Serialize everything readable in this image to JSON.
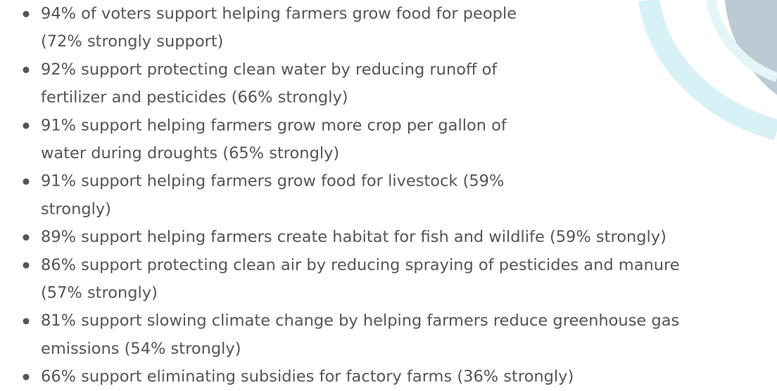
{
  "items": [
    {
      "lines": [
        "94% of voters support helping farmers grow food for people",
        "(72% strongly support)"
      ]
    },
    {
      "lines": [
        "92% support protecting clean water by reducing runoff of",
        "fertilizer and pesticides (66% strongly)"
      ]
    },
    {
      "lines": [
        "91% support helping farmers grow more crop per gallon of",
        "water during droughts (65% strongly)"
      ]
    },
    {
      "lines": [
        "91% support helping farmers grow food for livestock (59%",
        "strongly)"
      ]
    },
    {
      "lines": [
        "89% support helping farmers create habitat for fish and wildlife (59% strongly)"
      ]
    },
    {
      "lines": [
        "86% support protecting clean air by reducing spraying of pesticides and manure",
        "(57% strongly)"
      ]
    },
    {
      "lines": [
        "81% support slowing climate change by helping farmers reduce greenhouse gas",
        "emissions (54% strongly)"
      ]
    },
    {
      "lines": [
        "66% support eliminating subsidies for factory farms (36% strongly)"
      ]
    }
  ]
}
